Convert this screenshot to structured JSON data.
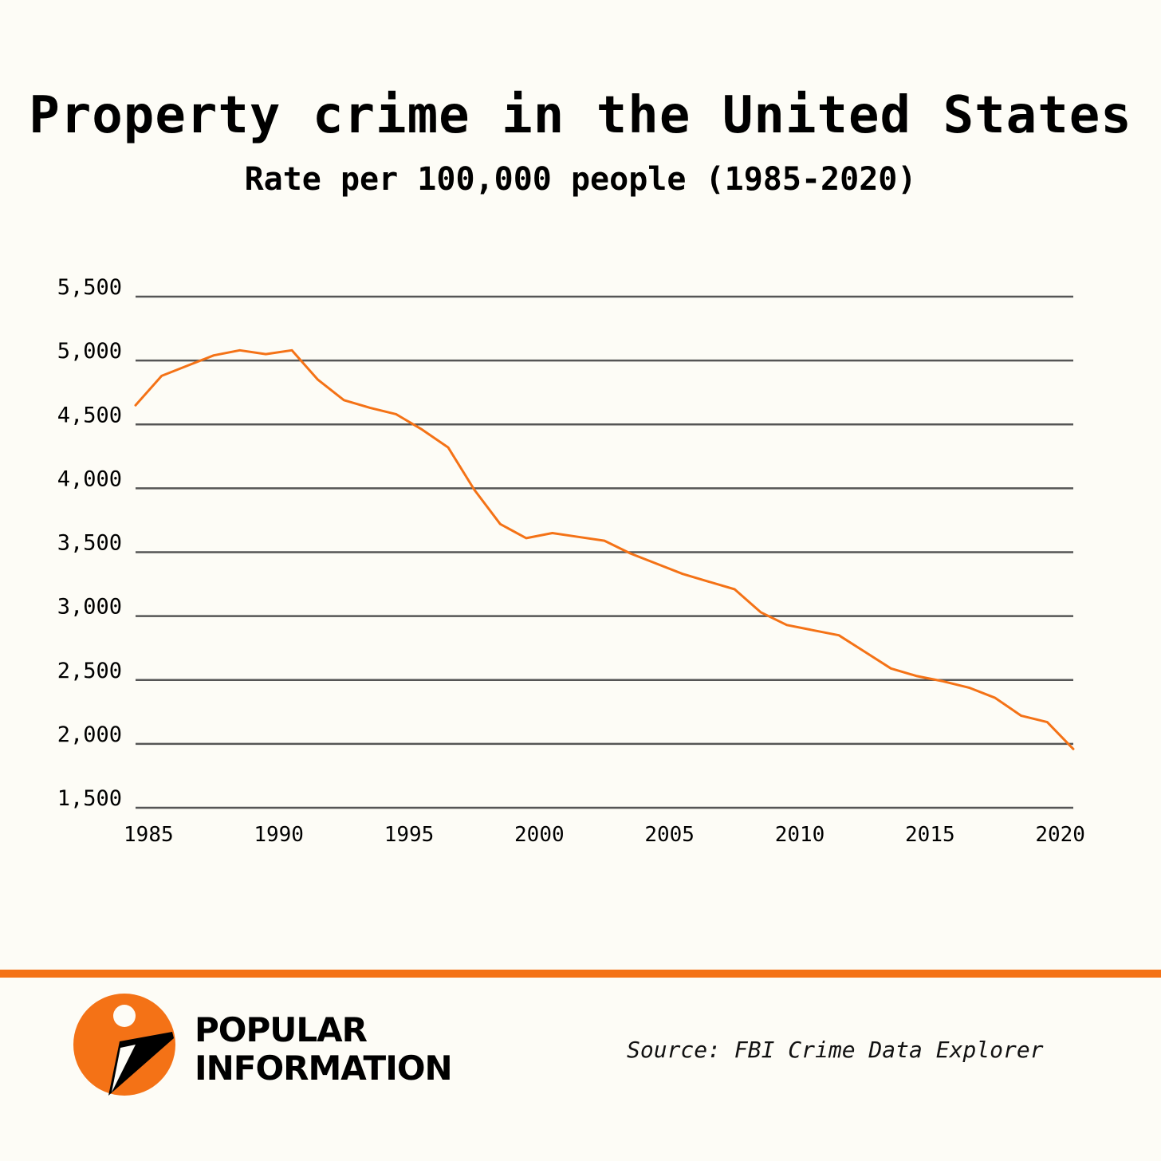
{
  "header": {
    "title": "Property crime in the United States",
    "subtitle": "Rate per 100,000 people (1985-2020)"
  },
  "footer": {
    "brand_line1": "POPULAR",
    "brand_line2": "INFORMATION",
    "source": "Source: FBI Crime Data Explorer"
  },
  "colors": {
    "accent": "#f47216",
    "grid": "#555555",
    "background": "#fdfcf6"
  },
  "chart_data": {
    "type": "line",
    "title": "Property crime in the United States",
    "subtitle": "Rate per 100,000 people (1985-2020)",
    "xlabel": "",
    "ylabel": "",
    "xlim": [
      1984.5,
      2020.5
    ],
    "ylim": [
      1500,
      5500
    ],
    "grid": true,
    "legend": "none",
    "y_ticks": [
      5500,
      5000,
      4500,
      4000,
      3500,
      3000,
      2500,
      2000,
      1500
    ],
    "y_tick_labels": [
      "5,500",
      "5,000",
      "4,500",
      "4,000",
      "3,500",
      "3,000",
      "2,500",
      "2,000",
      "1,500"
    ],
    "x_ticks": [
      1985,
      1990,
      1995,
      2000,
      2005,
      2010,
      2015,
      2020
    ],
    "x_tick_labels": [
      "1985",
      "1990",
      "1995",
      "2000",
      "2005",
      "2010",
      "2015",
      "2020"
    ],
    "series": [
      {
        "color": "#f47216",
        "x": [
          1984.5,
          1985.5,
          1986.5,
          1987.5,
          1988.5,
          1989.5,
          1990.5,
          1991.5,
          1992.5,
          1993.5,
          1994.5,
          1995.5,
          1996.5,
          1997.5,
          1998.5,
          1999.5,
          2000.5,
          2001.5,
          2002.5,
          2003.5,
          2004.5,
          2005.5,
          2006.5,
          2007.5,
          2008.5,
          2009.5,
          2010.5,
          2011.5,
          2012.5,
          2013.5,
          2014.5,
          2015.5,
          2016.5,
          2017.5,
          2018.5,
          2019.5,
          2020.5
        ],
        "values": [
          4650,
          4880,
          4960,
          5040,
          5080,
          5050,
          5080,
          4850,
          4690,
          4630,
          4580,
          4460,
          4320,
          3990,
          3720,
          3610,
          3650,
          3620,
          3590,
          3490,
          3410,
          3330,
          3270,
          3210,
          3030,
          2930,
          2890,
          2850,
          2720,
          2590,
          2530,
          2490,
          2440,
          2360,
          2220,
          2170,
          1960
        ]
      }
    ]
  }
}
